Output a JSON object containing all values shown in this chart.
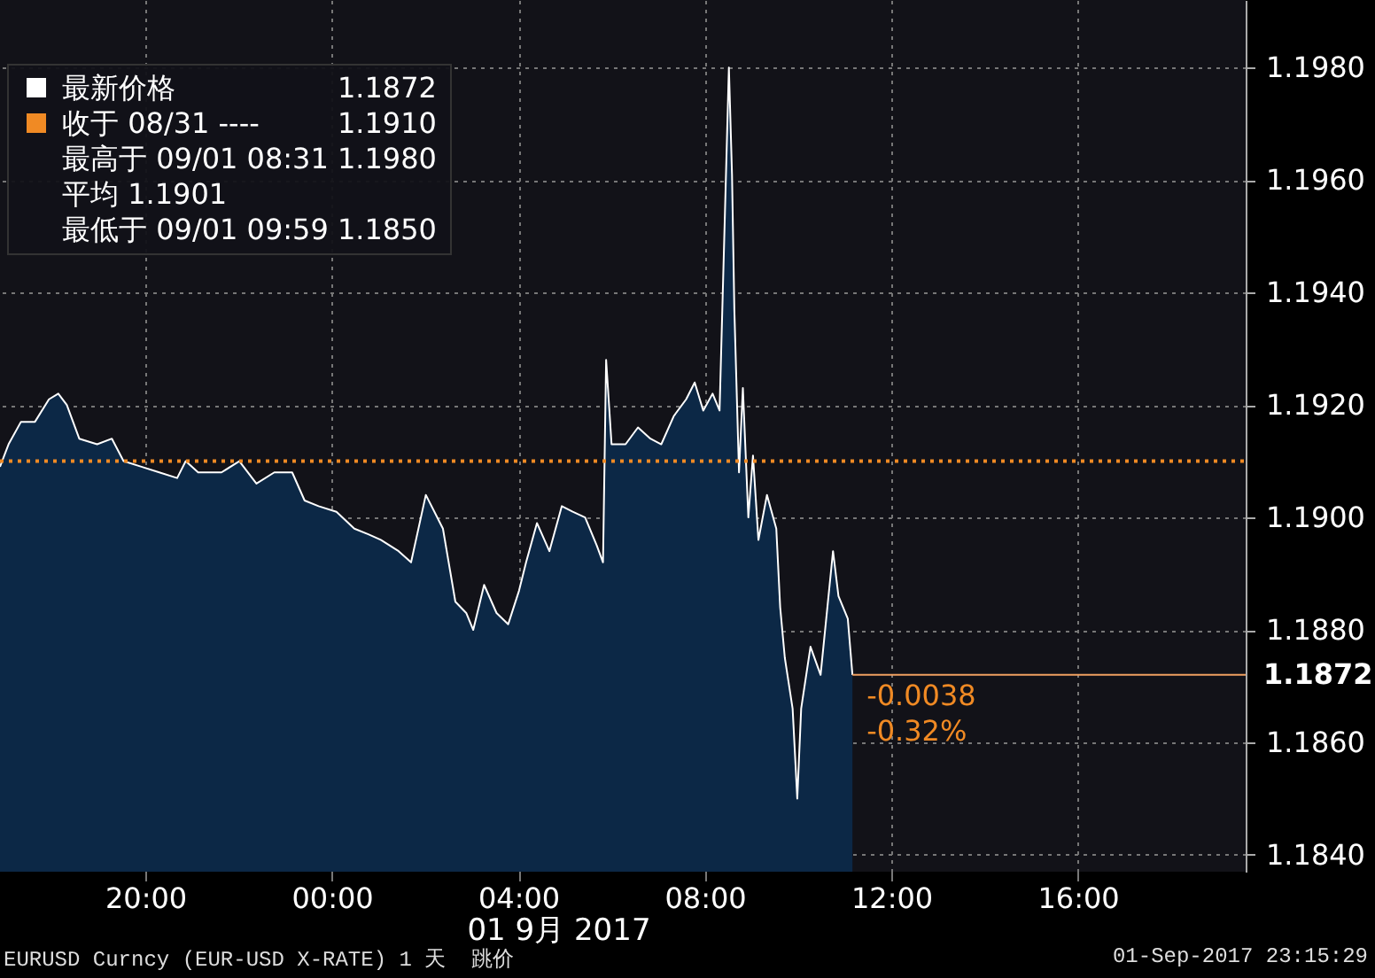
{
  "chart_data": {
    "type": "area",
    "xlabel": "01 9月 2017",
    "x": [
      "2017-08-31T16:53",
      "2017-08-31T17:04",
      "2017-08-31T17:20",
      "2017-08-31T17:38",
      "2017-08-31T17:56",
      "2017-08-31T18:08",
      "2017-08-31T18:19",
      "2017-08-31T18:35",
      "2017-08-31T18:58",
      "2017-08-31T19:17",
      "2017-08-31T19:32",
      "2017-08-31T19:55",
      "2017-08-31T20:18",
      "2017-08-31T20:41",
      "2017-08-31T20:52",
      "2017-08-31T21:08",
      "2017-08-31T21:38",
      "2017-08-31T22:01",
      "2017-08-31T22:23",
      "2017-08-31T22:46",
      "2017-08-31T23:09",
      "2017-08-31T23:25",
      "2017-08-31T23:43",
      "2017-09-01T00:06",
      "2017-09-01T00:29",
      "2017-09-01T00:47",
      "2017-09-01T01:03",
      "2017-09-01T01:26",
      "2017-09-01T01:42",
      "2017-09-01T02:01",
      "2017-09-01T02:23",
      "2017-09-01T02:39",
      "2017-09-01T02:53",
      "2017-09-01T03:02",
      "2017-09-01T03:16",
      "2017-09-01T03:32",
      "2017-09-01T03:47",
      "2017-09-01T04:01",
      "2017-09-01T04:10",
      "2017-09-01T04:24",
      "2017-09-01T04:40",
      "2017-09-01T04:56",
      "2017-09-01T05:10",
      "2017-09-01T05:26",
      "2017-09-01T05:41",
      "2017-09-01T05:49",
      "2017-09-01T05:53",
      "2017-09-01T06:00",
      "2017-09-01T06:18",
      "2017-09-01T06:34",
      "2017-09-01T06:50",
      "2017-09-01T07:04",
      "2017-09-01T07:20",
      "2017-09-01T07:36",
      "2017-09-01T07:47",
      "2017-09-01T07:58",
      "2017-09-01T08:10",
      "2017-09-01T08:19",
      "2017-09-01T08:31",
      "2017-09-01T08:35",
      "2017-09-01T08:38",
      "2017-09-01T08:44",
      "2017-09-01T08:49",
      "2017-09-01T08:56",
      "2017-09-01T09:02",
      "2017-09-01T09:09",
      "2017-09-01T09:20",
      "2017-09-01T09:32",
      "2017-09-01T09:37",
      "2017-09-01T09:43",
      "2017-09-01T09:53",
      "2017-09-01T09:59",
      "2017-09-01T10:04",
      "2017-09-01T10:16",
      "2017-09-01T10:29",
      "2017-09-01T10:45",
      "2017-09-01T10:52",
      "2017-09-01T11:04",
      "2017-09-01T11:10"
    ],
    "series": [
      {
        "name": "最新价格",
        "color": "#ffffff",
        "values": [
          1.1909,
          1.1913,
          1.1917,
          1.1917,
          1.1921,
          1.1922,
          1.192,
          1.1914,
          1.1913,
          1.1914,
          1.191,
          1.1909,
          1.1908,
          1.1907,
          1.191,
          1.1908,
          1.1908,
          1.191,
          1.1906,
          1.1908,
          1.1908,
          1.1903,
          1.1902,
          1.1901,
          1.1898,
          1.1897,
          1.1896,
          1.1894,
          1.1892,
          1.1904,
          1.1898,
          1.1885,
          1.1883,
          1.188,
          1.1888,
          1.1883,
          1.1881,
          1.1887,
          1.1892,
          1.1899,
          1.1894,
          1.1902,
          1.1901,
          1.19,
          1.1895,
          1.1892,
          1.1928,
          1.1913,
          1.1913,
          1.1916,
          1.1914,
          1.1913,
          1.1918,
          1.1921,
          1.1924,
          1.1919,
          1.1922,
          1.1919,
          1.198,
          1.1961,
          1.1937,
          1.1908,
          1.1923,
          1.19,
          1.1911,
          1.1896,
          1.1904,
          1.1898,
          1.1884,
          1.1875,
          1.1866,
          1.185,
          1.1866,
          1.1877,
          1.1872,
          1.1894,
          1.1886,
          1.1882,
          1.1872
        ]
      }
    ],
    "xlim": [
      "2017-08-31T16:53",
      "2017-09-01T19:36"
    ],
    "xticks": [
      {
        "value": "2017-08-31T20:00",
        "label": "20:00"
      },
      {
        "value": "2017-09-01T00:00",
        "label": "00:00"
      },
      {
        "value": "2017-09-01T04:00",
        "label": "04:00"
      },
      {
        "value": "2017-09-01T08:00",
        "label": "08:00"
      },
      {
        "value": "2017-09-01T12:00",
        "label": "12:00"
      },
      {
        "value": "2017-09-01T16:00",
        "label": "16:00"
      }
    ],
    "ylim": [
      1.1837,
      1.1992
    ],
    "yticks": [
      {
        "value": 1.184,
        "label": "1.1840"
      },
      {
        "value": 1.186,
        "label": "1.1860"
      },
      {
        "value": 1.188,
        "label": "1.1880"
      },
      {
        "value": 1.19,
        "label": "1.1900"
      },
      {
        "value": 1.192,
        "label": "1.1920"
      },
      {
        "value": 1.194,
        "label": "1.1940"
      },
      {
        "value": 1.196,
        "label": "1.1960"
      },
      {
        "value": 1.198,
        "label": "1.1980"
      }
    ],
    "ref_lines": [
      {
        "axis": "y",
        "value": 1.191,
        "label": "收于 08/31 ----",
        "color": "#f08a24",
        "line_style": "dotted"
      },
      {
        "axis": "y",
        "value": 1.1872,
        "label": "1.1872",
        "color": "#f0a060",
        "line_style": "solid"
      }
    ],
    "annotations": [
      "1.1872",
      "1.1910",
      "最高于 09/01 08:31 1.1980",
      "平均 1.1901",
      "最低于 09/01 09:59 1.1850",
      {
        "text": "-0.0038",
        "x": "2017-09-01T11:10",
        "y": 1.1872
      },
      {
        "text": "-0.32%",
        "x": "2017-09-01T11:10",
        "y": 1.1872
      },
      "EURUSD Curncy (EUR-USD X-RATE) 1 天  跳价",
      "01-Sep-2017 23:15:29"
    ],
    "grid": true,
    "legend": "top left"
  }
}
